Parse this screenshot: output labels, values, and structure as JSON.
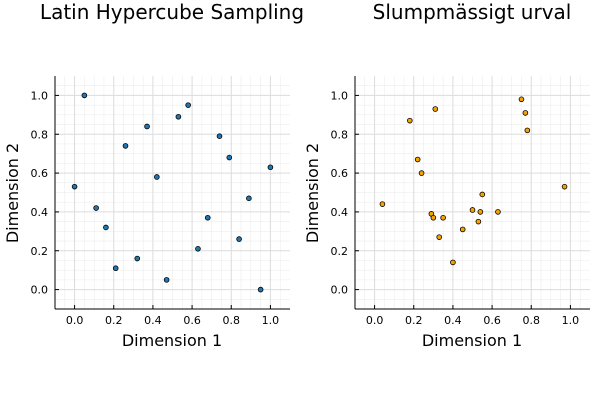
{
  "colors": {
    "series_left": "#1f77b4",
    "series_right": "#f5a300",
    "grid": "#dcdcdc",
    "axis": "#000000"
  },
  "chart_data": [
    {
      "type": "scatter",
      "title": "Latin Hypercube Sampling",
      "xlabel": "Dimension 1",
      "ylabel": "Dimension 2",
      "xlim": [
        -0.1,
        1.1
      ],
      "ylim": [
        -0.1,
        1.1
      ],
      "xticks": [
        "0.0",
        "0.2",
        "0.4",
        "0.6",
        "0.8",
        "1.0"
      ],
      "yticks": [
        "0.0",
        "0.2",
        "0.4",
        "0.6",
        "0.8",
        "1.0"
      ],
      "grid": "on (major 0.2, minor 0.05)",
      "legend": "none",
      "marker_color": "series_left",
      "points": [
        {
          "x": 0.0,
          "y": 0.53
        },
        {
          "x": 0.05,
          "y": 1.0
        },
        {
          "x": 0.11,
          "y": 0.42
        },
        {
          "x": 0.16,
          "y": 0.32
        },
        {
          "x": 0.21,
          "y": 0.11
        },
        {
          "x": 0.26,
          "y": 0.74
        },
        {
          "x": 0.32,
          "y": 0.16
        },
        {
          "x": 0.37,
          "y": 0.84
        },
        {
          "x": 0.42,
          "y": 0.58
        },
        {
          "x": 0.47,
          "y": 0.05
        },
        {
          "x": 0.53,
          "y": 0.89
        },
        {
          "x": 0.58,
          "y": 0.95
        },
        {
          "x": 0.63,
          "y": 0.21
        },
        {
          "x": 0.68,
          "y": 0.37
        },
        {
          "x": 0.74,
          "y": 0.79
        },
        {
          "x": 0.79,
          "y": 0.68
        },
        {
          "x": 0.84,
          "y": 0.26
        },
        {
          "x": 0.89,
          "y": 0.47
        },
        {
          "x": 0.95,
          "y": 0.0
        },
        {
          "x": 1.0,
          "y": 0.63
        }
      ]
    },
    {
      "type": "scatter",
      "title": "Slumpmässigt urval",
      "xlabel": "Dimension 1",
      "ylabel": "Dimension 2",
      "xlim": [
        -0.1,
        1.1
      ],
      "ylim": [
        -0.1,
        1.1
      ],
      "xticks": [
        "0.0",
        "0.2",
        "0.4",
        "0.6",
        "0.8",
        "1.0"
      ],
      "yticks": [
        "0.0",
        "0.2",
        "0.4",
        "0.6",
        "0.8",
        "1.0"
      ],
      "grid": "on (major 0.2, minor 0.05)",
      "legend": "none",
      "marker_color": "series_right",
      "points": [
        {
          "x": 0.04,
          "y": 0.44
        },
        {
          "x": 0.18,
          "y": 0.87
        },
        {
          "x": 0.22,
          "y": 0.67
        },
        {
          "x": 0.24,
          "y": 0.6
        },
        {
          "x": 0.29,
          "y": 0.39
        },
        {
          "x": 0.3,
          "y": 0.37
        },
        {
          "x": 0.31,
          "y": 0.93
        },
        {
          "x": 0.33,
          "y": 0.27
        },
        {
          "x": 0.35,
          "y": 0.37
        },
        {
          "x": 0.4,
          "y": 0.14
        },
        {
          "x": 0.45,
          "y": 0.31
        },
        {
          "x": 0.5,
          "y": 0.41
        },
        {
          "x": 0.53,
          "y": 0.35
        },
        {
          "x": 0.54,
          "y": 0.4
        },
        {
          "x": 0.55,
          "y": 0.49
        },
        {
          "x": 0.63,
          "y": 0.4
        },
        {
          "x": 0.75,
          "y": 0.98
        },
        {
          "x": 0.77,
          "y": 0.91
        },
        {
          "x": 0.78,
          "y": 0.82
        },
        {
          "x": 0.97,
          "y": 0.53
        }
      ]
    }
  ]
}
